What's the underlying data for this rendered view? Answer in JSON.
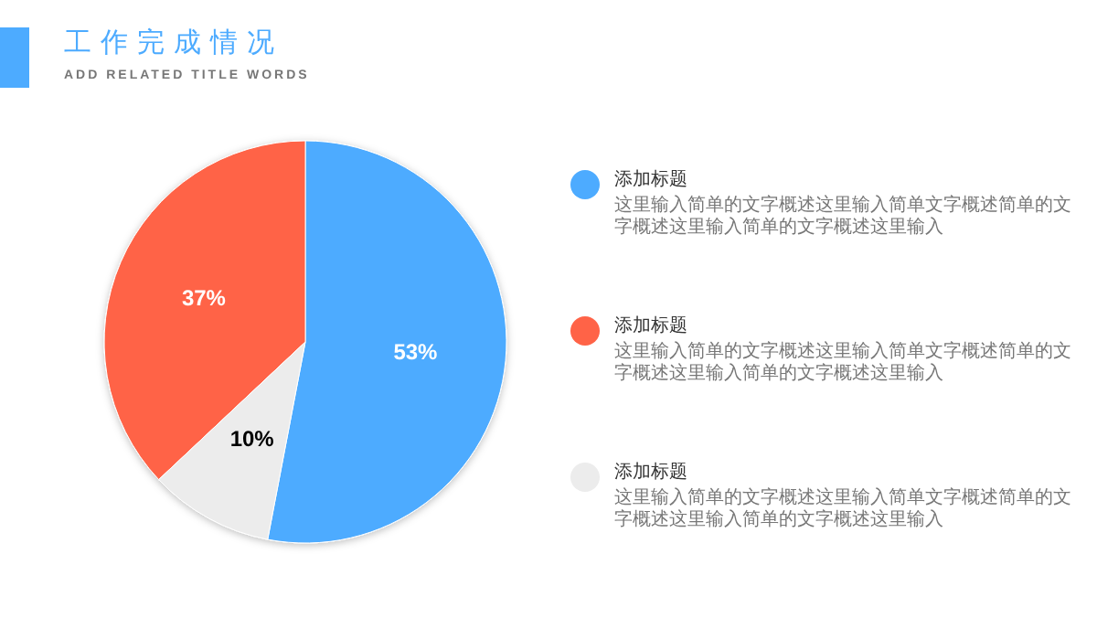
{
  "chart_data": {
    "type": "pie",
    "title": "工作完成情况",
    "subtitle": "ADD RELATED TITLE WORDS",
    "categories": [
      "添加标题",
      "添加标题",
      "添加标题"
    ],
    "values": [
      53,
      37,
      10
    ],
    "colors": [
      "#4dabff",
      "#ff6347",
      "#ececec"
    ],
    "value_labels": [
      "53%",
      "37%",
      "10%"
    ],
    "legend": "right",
    "annotations": [
      "这里输入简单的文字概述这里输入简单文字概述简单的文字概述这里输入简单的文字概述这里输入",
      "这里输入简单的文字概述这里输入简单文字概述简单的文字概述这里输入简单的文字概述这里输入",
      "这里输入简单的文字概述这里输入简单文字概述简单的文字概述这里输入简单的文字概述这里输入"
    ]
  }
}
